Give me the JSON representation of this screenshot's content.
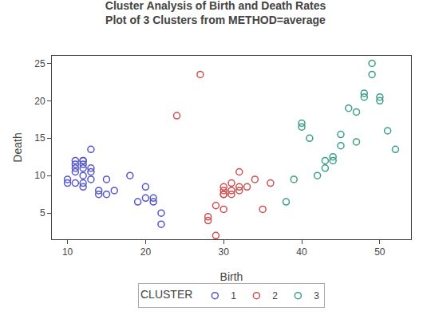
{
  "chart_data": {
    "type": "scatter",
    "title": "Cluster Analysis of Birth and Death Rates",
    "subtitle": "Plot of 3 Clusters from METHOD=average",
    "xlabel": "Birth",
    "ylabel": "Death",
    "xlim": [
      8,
      54
    ],
    "ylim": [
      1.5,
      26
    ],
    "xticks": [
      10,
      20,
      30,
      40,
      50
    ],
    "yticks": [
      5,
      10,
      15,
      20,
      25
    ],
    "grid": false,
    "legend": "bottom",
    "legend_title": "CLUSTER",
    "marker": "circle-open",
    "series": [
      {
        "name": "1",
        "color": "#5555cc",
        "x": [
          10,
          10,
          11,
          11,
          11,
          11,
          11,
          12,
          12,
          12,
          12,
          12,
          12,
          12,
          13,
          13,
          13,
          13,
          14,
          14,
          15,
          15,
          16,
          18,
          19,
          20,
          20,
          21,
          21,
          22,
          22
        ],
        "values": [
          9,
          9.5,
          11,
          10.5,
          11.5,
          12,
          9,
          8.5,
          9,
          10,
          11,
          11.5,
          12,
          12,
          9.5,
          10.5,
          11,
          13.5,
          7.5,
          8,
          7.5,
          9.5,
          8,
          10,
          6.5,
          7,
          8.5,
          6.5,
          7,
          5,
          3.5
        ]
      },
      {
        "name": "2",
        "color": "#cc5050",
        "x": [
          24,
          27,
          28,
          28,
          29,
          29,
          30,
          30,
          30,
          30,
          30,
          31,
          31,
          31,
          32,
          32,
          32,
          33,
          34,
          35,
          36
        ],
        "values": [
          18,
          23.5,
          4,
          4.5,
          2,
          6,
          8,
          8.5,
          7.5,
          7.5,
          5.5,
          9,
          8,
          7.5,
          10.5,
          8.5,
          8,
          8.5,
          9.5,
          5.5,
          9
        ]
      },
      {
        "name": "3",
        "color": "#3d9e8a",
        "x": [
          38,
          39,
          40,
          40,
          41,
          42,
          43,
          43,
          44,
          44,
          45,
          45,
          46,
          47,
          47,
          48,
          48,
          49,
          49,
          50,
          50,
          51,
          52
        ],
        "values": [
          6.5,
          9.5,
          16.5,
          17,
          15,
          10,
          11,
          12,
          12,
          12.5,
          15.5,
          14,
          19,
          18.5,
          14.5,
          21,
          20.5,
          25,
          23.5,
          20,
          20.5,
          16,
          13.5
        ]
      }
    ]
  }
}
